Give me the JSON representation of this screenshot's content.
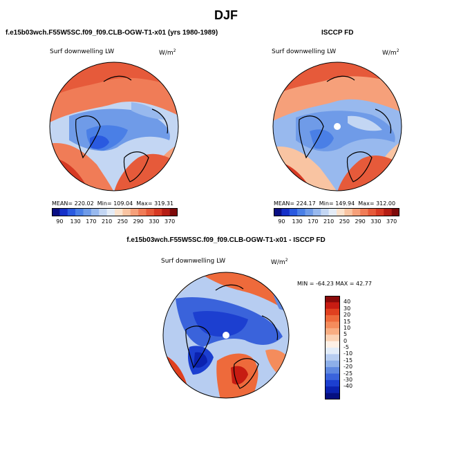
{
  "page_title": "DJF",
  "panels": [
    {
      "heading": "f.e15b03wch.F55W5SC.f09_f09.CLB-OGW-T1-x01 (yrs 1980-1989)",
      "variable": "Surf downwelling LW",
      "units": "W/m",
      "units_exp": "2",
      "mean_text": "MEAN= 220.02",
      "min_text": "Min= 109.04",
      "max_text": "Max= 319.31"
    },
    {
      "heading": "ISCCP FD",
      "variable": "Surf downwelling LW",
      "units": "W/m",
      "units_exp": "2",
      "mean_text": "MEAN= 224.17",
      "min_text": "Min= 149.94",
      "max_text": "Max= 312.00"
    },
    {
      "heading": "f.e15b03wch.F55W5SC.f09_f09.CLB-OGW-T1-x01 - ISCCP FD",
      "variable": "Surf downwelling LW",
      "units": "W/m",
      "units_exp": "2",
      "minmax_text": "MIN = -64.23 MAX =  42.77"
    }
  ],
  "colorbar_abs": {
    "tick_labels": [
      "90",
      "130",
      "170",
      "210",
      "250",
      "290",
      "330",
      "370"
    ],
    "colors": [
      "#0a0f84",
      "#1530c8",
      "#2a5ae0",
      "#4a7fe6",
      "#6f9be8",
      "#98b9ee",
      "#c3d6f3",
      "#e4ecf7",
      "#fbe2cd",
      "#f9c4a2",
      "#f6a07a",
      "#f07c57",
      "#e65a3a",
      "#d73a24",
      "#b51d14",
      "#7e0a0a"
    ]
  },
  "colorbar_diff": {
    "tick_labels": [
      "40",
      "30",
      "20",
      "15",
      "10",
      "5",
      "0",
      "-5",
      "-10",
      "-15",
      "-20",
      "-25",
      "-30",
      "-40"
    ],
    "colors": [
      "#8a0a0a",
      "#c71c12",
      "#e0401f",
      "#ee6a3b",
      "#f48c5c",
      "#f8ad82",
      "#fbd2b4",
      "#fdf0e6",
      "#e2ecf9",
      "#b7cdf1",
      "#8dafe9",
      "#5f88e0",
      "#3a63db",
      "#1c3fd0",
      "#0b22b0",
      "#050f80"
    ]
  }
}
